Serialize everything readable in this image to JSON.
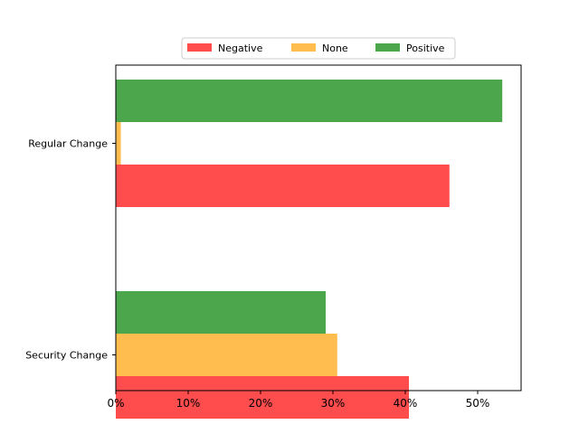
{
  "chart_data": {
    "type": "bar",
    "orientation": "horizontal",
    "categories": [
      "Security Change",
      "Regular Change"
    ],
    "series": [
      {
        "name": "Negative",
        "color": "#ff4c4c",
        "values": [
          40.5,
          46.1
        ]
      },
      {
        "name": "None",
        "color": "#ffbd4f",
        "values": [
          30.6,
          0.7
        ]
      },
      {
        "name": "Positive",
        "color": "#4ca64c",
        "values": [
          29.0,
          53.4
        ]
      }
    ],
    "xlim": [
      0,
      56
    ],
    "xticks": [
      0,
      10,
      20,
      30,
      40,
      50
    ],
    "xtick_labels": [
      "0%",
      "10%",
      "20%",
      "30%",
      "40%",
      "50%"
    ],
    "legend": {
      "placement": "top-center",
      "entries": [
        "Negative",
        "None",
        "Positive"
      ]
    },
    "grid": false,
    "title": "",
    "xlabel": "",
    "ylabel": ""
  }
}
